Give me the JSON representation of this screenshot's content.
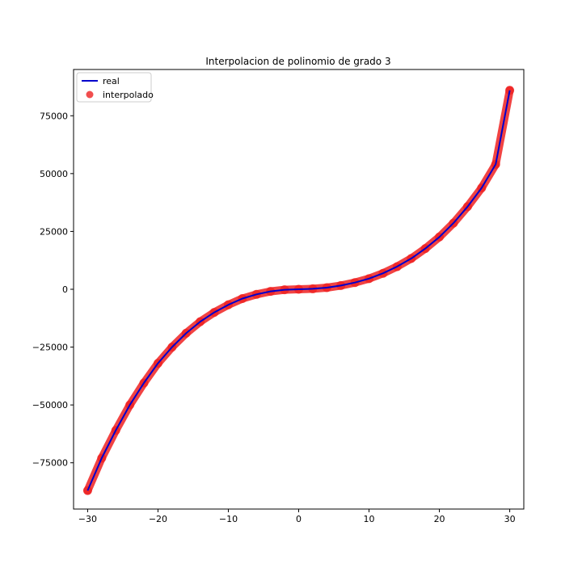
{
  "chart_data": {
    "type": "line",
    "title": "Interpolacion de polinomio de grado 3",
    "xlabel": "",
    "ylabel": "",
    "xlim": [
      -32,
      32
    ],
    "ylim": [
      -95000,
      95000
    ],
    "xticks": [
      -30,
      -20,
      -10,
      0,
      10,
      20,
      30
    ],
    "yticks": [
      -75000,
      -50000,
      -25000,
      0,
      25000,
      50000,
      75000
    ],
    "xtick_labels": [
      "−30",
      "−20",
      "−10",
      "0",
      "10",
      "20",
      "30"
    ],
    "ytick_labels": [
      "−75000",
      "−50000",
      "−25000",
      "0",
      "25000",
      "50000",
      "75000"
    ],
    "grid": false,
    "legend": {
      "location": "top-left",
      "entries": [
        {
          "label": "real",
          "style": "line",
          "color": "#0000cc"
        },
        {
          "label": "interpolado",
          "style": "marker",
          "color": "#ee2222"
        }
      ]
    },
    "series": [
      {
        "name": "real",
        "style": "line",
        "color": "#0000cc",
        "x": [
          -30,
          -28,
          -26,
          -24,
          -22,
          -20,
          -18,
          -16,
          -14,
          -12,
          -10,
          -8,
          -6,
          -4,
          -2,
          0,
          2,
          4,
          6,
          8,
          10,
          12,
          14,
          16,
          18,
          20,
          22,
          24,
          26,
          28,
          30
        ],
        "y": [
          -87000,
          -73000,
          -61000,
          -50000,
          -40500,
          -32000,
          -25000,
          -19000,
          -14000,
          -10000,
          -6700,
          -4000,
          -2200,
          -900,
          -200,
          0,
          200,
          700,
          1600,
          2900,
          4600,
          6900,
          9800,
          13300,
          17600,
          22600,
          28600,
          35700,
          43800,
          54000,
          86000
        ]
      },
      {
        "name": "interpolado",
        "style": "scatter",
        "color": "#ee2222",
        "x": [
          -30,
          -28,
          -26,
          -24,
          -22,
          -20,
          -18,
          -16,
          -14,
          -12,
          -10,
          -8,
          -6,
          -4,
          -2,
          0,
          2,
          4,
          6,
          8,
          10,
          12,
          14,
          16,
          18,
          20,
          22,
          24,
          26,
          28,
          30
        ],
        "y": [
          -87000,
          -73000,
          -61000,
          -50000,
          -40500,
          -32000,
          -25000,
          -19000,
          -14000,
          -10000,
          -6700,
          -4000,
          -2200,
          -900,
          -200,
          0,
          200,
          700,
          1600,
          2900,
          4600,
          6900,
          9800,
          13300,
          17600,
          22600,
          28600,
          35700,
          43800,
          54000,
          86000
        ]
      }
    ]
  }
}
